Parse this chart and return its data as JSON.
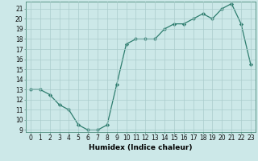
{
  "x": [
    0,
    1,
    2,
    3,
    4,
    5,
    6,
    7,
    8,
    9,
    10,
    11,
    12,
    13,
    14,
    15,
    16,
    17,
    18,
    19,
    20,
    21,
    22,
    23
  ],
  "y": [
    13,
    13,
    12.5,
    11.5,
    11,
    9.5,
    9,
    9,
    9.5,
    13.5,
    17.5,
    18,
    18,
    18,
    19,
    19.5,
    19.5,
    20,
    20.5,
    20,
    21,
    21.5,
    19.5,
    15.5
  ],
  "line_color": "#2e7d6e",
  "marker": "D",
  "marker_size": 2.2,
  "background_color": "#cce8e8",
  "grid_color": "#aacccc",
  "xlabel": "Humidex (Indice chaleur)",
  "xlim": [
    -0.5,
    23.5
  ],
  "ylim": [
    8.8,
    21.7
  ],
  "yticks": [
    9,
    10,
    11,
    12,
    13,
    14,
    15,
    16,
    17,
    18,
    19,
    20,
    21
  ],
  "xticks": [
    0,
    1,
    2,
    3,
    4,
    5,
    6,
    7,
    8,
    9,
    10,
    11,
    12,
    13,
    14,
    15,
    16,
    17,
    18,
    19,
    20,
    21,
    22,
    23
  ],
  "tick_fontsize": 5.5,
  "xlabel_fontsize": 6.5
}
